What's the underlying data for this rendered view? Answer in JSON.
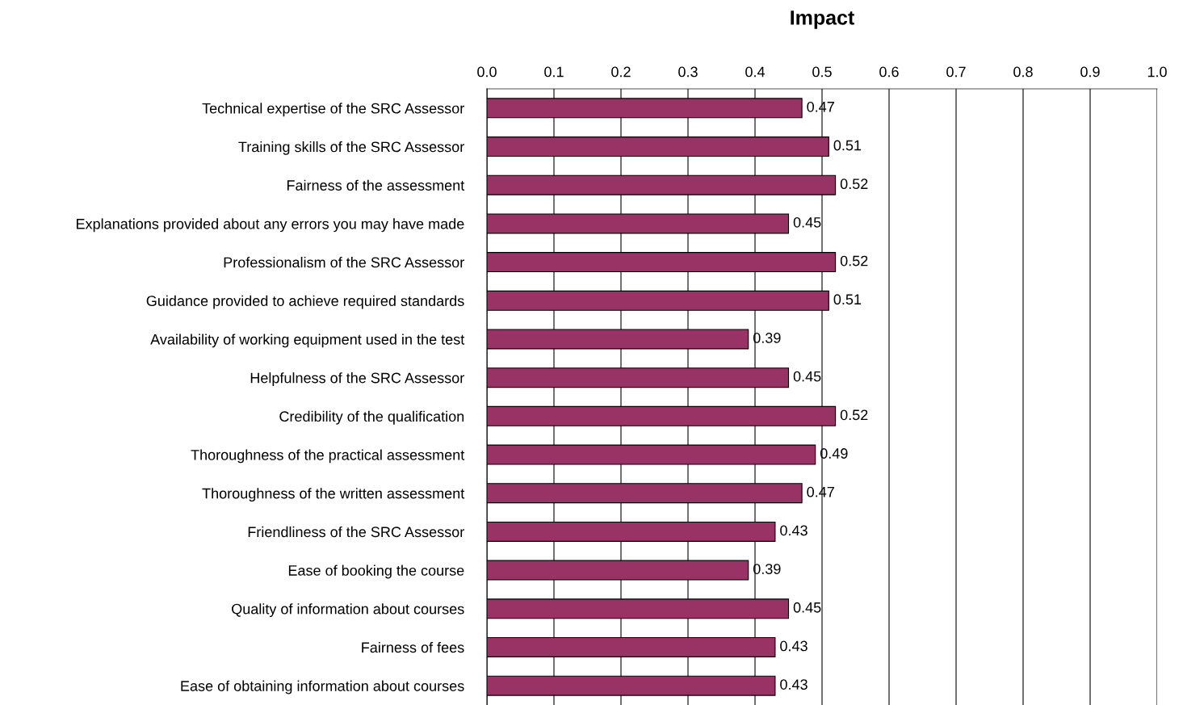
{
  "chart_data": {
    "type": "bar",
    "orientation": "horizontal",
    "title": "Impact",
    "categories": [
      "Technical expertise of the SRC Assessor",
      "Training skills of the SRC Assessor",
      "Fairness of the assessment",
      "Explanations provided about any errors you may have made",
      "Professionalism of the SRC Assessor",
      "Guidance provided to achieve required standards",
      "Availability of working equipment used in the test",
      "Helpfulness of the SRC Assessor",
      "Credibility of the qualification",
      "Thoroughness of the practical assessment",
      "Thoroughness of the written assessment",
      "Friendliness of the SRC Assessor",
      "Ease of booking the course",
      "Quality of information about courses",
      "Fairness of fees",
      "Ease of obtaining information about courses"
    ],
    "values": [
      0.47,
      0.51,
      0.52,
      0.45,
      0.52,
      0.51,
      0.39,
      0.45,
      0.52,
      0.49,
      0.47,
      0.43,
      0.39,
      0.45,
      0.43,
      0.43
    ],
    "color": "#993366",
    "xlim": [
      0.0,
      1.0
    ],
    "xticks": [
      {
        "value": 0.0,
        "label": "0.0"
      },
      0.1,
      0.2,
      0.3,
      0.4,
      0.5,
      0.6,
      0.7,
      0.8,
      0.9,
      {
        "value": 1.0,
        "label": "1.0"
      }
    ],
    "grid": "x",
    "data_labels": true
  }
}
